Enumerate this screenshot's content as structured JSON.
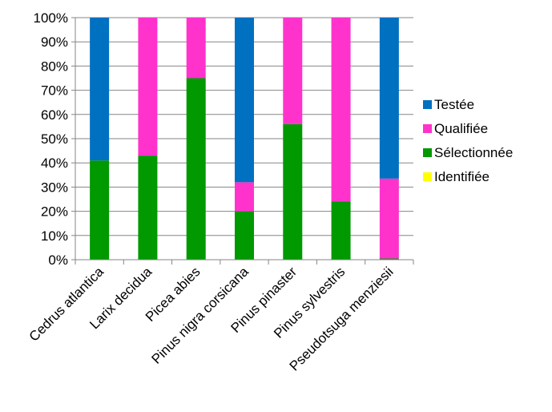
{
  "chart_data": {
    "type": "bar",
    "stacked": true,
    "percent_stacked": true,
    "categories": [
      "Cedrus atlantica",
      "Larix decidua",
      "Picea abies",
      "Pinus nigra corsicana",
      "Pinus pinaster",
      "Pinus sylvestris",
      "Pseudotsuga menziesii"
    ],
    "series": [
      {
        "name": "Identifiée",
        "color": "#FFFF00",
        "values": [
          0,
          0,
          0,
          0,
          0,
          0,
          0
        ]
      },
      {
        "name": "Sélectionnée",
        "color": "#009900",
        "values": [
          41,
          43,
          75,
          20,
          56,
          24,
          0.5
        ]
      },
      {
        "name": "Qualifiée",
        "color": "#FF33CC",
        "values": [
          0,
          57,
          25,
          12,
          44,
          76,
          33
        ]
      },
      {
        "name": "Testée",
        "color": "#0070C0",
        "values": [
          59,
          0,
          0,
          68,
          0,
          0,
          66.5
        ]
      }
    ],
    "y_ticks": [
      "0%",
      "10%",
      "20%",
      "30%",
      "40%",
      "50%",
      "60%",
      "70%",
      "80%",
      "90%",
      "100%"
    ],
    "ylim": [
      0,
      100
    ],
    "grid": true,
    "legend_position": "right",
    "legend_order": [
      "Testée",
      "Qualifiée",
      "Sélectionnée",
      "Identifiée"
    ]
  }
}
